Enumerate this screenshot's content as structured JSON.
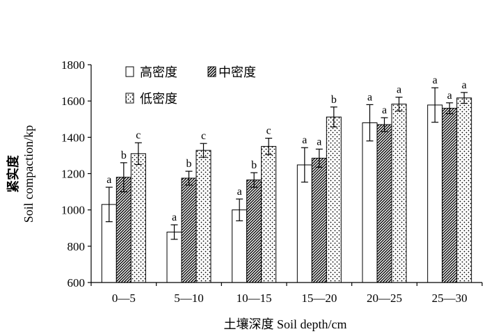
{
  "chart_data": {
    "type": "bar",
    "xlabel": "土壤深度 Soil depth/cm",
    "ylabel_zh": "紧实度",
    "ylabel_en": "Soil compaction/kp",
    "ylim": [
      600,
      1800
    ],
    "yticks": [
      600,
      800,
      1000,
      1200,
      1400,
      1600,
      1800
    ],
    "legend_position": "top-left",
    "categories": [
      "0—5",
      "5—10",
      "10—15",
      "15—20",
      "20—25",
      "25—30"
    ],
    "series": [
      {
        "name": "高密度",
        "pattern": "plain",
        "values": [
          1030,
          878,
          1000,
          1248,
          1480,
          1578
        ],
        "errors": [
          95,
          40,
          60,
          95,
          100,
          95
        ],
        "labels": [
          "a",
          "a",
          "a",
          "a",
          "a",
          "a"
        ]
      },
      {
        "name": "中密度",
        "pattern": "diagonal-hatch",
        "values": [
          1180,
          1175,
          1165,
          1285,
          1470,
          1560
        ],
        "errors": [
          80,
          38,
          40,
          50,
          38,
          30
        ],
        "labels": [
          "b",
          "b",
          "b",
          "a",
          "a",
          "a"
        ]
      },
      {
        "name": "低密度",
        "pattern": "dots",
        "values": [
          1310,
          1328,
          1350,
          1512,
          1583,
          1617
        ],
        "errors": [
          60,
          38,
          45,
          55,
          38,
          30
        ],
        "labels": [
          "c",
          "c",
          "c",
          "b",
          "a",
          "a"
        ]
      }
    ]
  }
}
